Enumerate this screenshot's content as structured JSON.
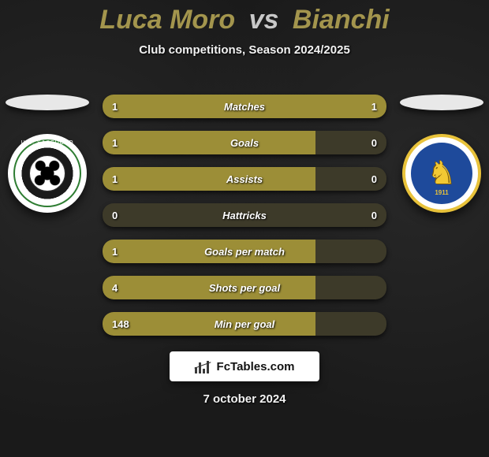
{
  "title": {
    "player1": "Luca Moro",
    "vs": "vs",
    "player2": "Bianchi"
  },
  "subtitle": "Club competitions, Season 2024/2025",
  "teams": {
    "left": {
      "name": "U.S. Sassuolo",
      "ring_text": "U.S. SASSUOLO",
      "crest_colors": {
        "ring": "#2e7d32",
        "outer": "#ffffff",
        "bg": "#1a1a1a"
      }
    },
    "right": {
      "name": "Brescia Calcio",
      "year": "1911",
      "crest_colors": {
        "ring": "#e8c23a",
        "blue": "#1e4a9b",
        "lion": "#e8c23a"
      }
    }
  },
  "rows": [
    {
      "label": "Matches",
      "left": "1",
      "right": "1",
      "fill_left_pct": 64,
      "fill_right_pct": 36
    },
    {
      "label": "Goals",
      "left": "1",
      "right": "0",
      "fill_left_pct": 75,
      "fill_right_pct": 0
    },
    {
      "label": "Assists",
      "left": "1",
      "right": "0",
      "fill_left_pct": 75,
      "fill_right_pct": 0
    },
    {
      "label": "Hattricks",
      "left": "0",
      "right": "0",
      "fill_left_pct": 0,
      "fill_right_pct": 0
    },
    {
      "label": "Goals per match",
      "left": "1",
      "right": "",
      "fill_left_pct": 75,
      "fill_right_pct": 0
    },
    {
      "label": "Shots per goal",
      "left": "4",
      "right": "",
      "fill_left_pct": 75,
      "fill_right_pct": 0
    },
    {
      "label": "Min per goal",
      "left": "148",
      "right": "",
      "fill_left_pct": 75,
      "fill_right_pct": 0
    }
  ],
  "footer": {
    "brand": "FcTables.com",
    "date": "7 october 2024"
  },
  "colors": {
    "bar_bg": "#3d3a29",
    "bar_fill": "#9c8e37",
    "title_accent": "#a3954d",
    "title_vs": "#c8c8c8",
    "body_bg": "#1a1a1a"
  }
}
